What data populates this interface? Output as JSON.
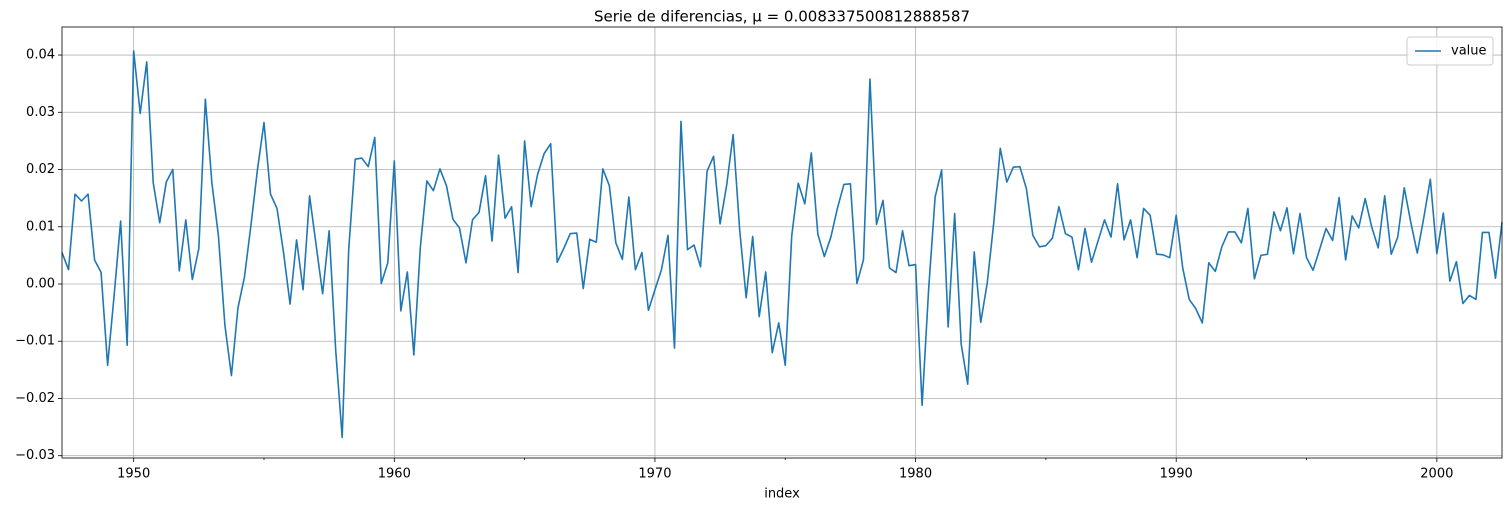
{
  "chart_data": {
    "type": "line",
    "title": "Serie de diferencias, μ = 0.008337500812888587",
    "xlabel": "index",
    "x": [
      1947.25,
      1947.5,
      1947.75,
      1948,
      1948.25,
      1948.5,
      1948.75,
      1949,
      1949.25,
      1949.5,
      1949.75,
      1950,
      1950.25,
      1950.5,
      1950.75,
      1951,
      1951.25,
      1951.5,
      1951.75,
      1952,
      1952.25,
      1952.5,
      1952.75,
      1953,
      1953.25,
      1953.5,
      1953.75,
      1954,
      1954.25,
      1954.5,
      1954.75,
      1955,
      1955.25,
      1955.5,
      1955.75,
      1956,
      1956.25,
      1956.5,
      1956.75,
      1957,
      1957.25,
      1957.5,
      1957.75,
      1958,
      1958.25,
      1958.5,
      1958.75,
      1959,
      1959.25,
      1959.5,
      1959.75,
      1960,
      1960.25,
      1960.5,
      1960.75,
      1961,
      1961.25,
      1961.5,
      1961.75,
      1962,
      1962.25,
      1962.5,
      1962.75,
      1963,
      1963.25,
      1963.5,
      1963.75,
      1964,
      1964.25,
      1964.5,
      1964.75,
      1965,
      1965.25,
      1965.5,
      1965.75,
      1966,
      1966.25,
      1966.5,
      1966.75,
      1967,
      1967.25,
      1967.5,
      1967.75,
      1968,
      1968.25,
      1968.5,
      1968.75,
      1969,
      1969.25,
      1969.5,
      1969.75,
      1970,
      1970.25,
      1970.5,
      1970.75,
      1971,
      1971.25,
      1971.5,
      1971.75,
      1972,
      1972.25,
      1972.5,
      1972.75,
      1973,
      1973.25,
      1973.5,
      1973.75,
      1974,
      1974.25,
      1974.5,
      1974.75,
      1975,
      1975.25,
      1975.5,
      1975.75,
      1976,
      1976.25,
      1976.5,
      1976.75,
      1977,
      1977.25,
      1977.5,
      1977.75,
      1978,
      1978.25,
      1978.5,
      1978.75,
      1979,
      1979.25,
      1979.5,
      1979.75,
      1980,
      1980.25,
      1980.5,
      1980.75,
      1981,
      1981.25,
      1981.5,
      1981.75,
      1982,
      1982.25,
      1982.5,
      1982.75,
      1983,
      1983.25,
      1983.5,
      1983.75,
      1984,
      1984.25,
      1984.5,
      1984.75,
      1985,
      1985.25,
      1985.5,
      1985.75,
      1986,
      1986.25,
      1986.5,
      1986.75,
      1987,
      1987.25,
      1987.5,
      1987.75,
      1988,
      1988.25,
      1988.5,
      1988.75,
      1989,
      1989.25,
      1989.5,
      1989.75,
      1990,
      1990.25,
      1990.5,
      1990.75,
      1991,
      1991.25,
      1991.5,
      1991.75,
      1992,
      1992.25,
      1992.5,
      1992.75,
      1993,
      1993.25,
      1993.5,
      1993.75,
      1994,
      1994.25,
      1994.5,
      1994.75,
      1995,
      1995.25,
      1995.5,
      1995.75,
      1996,
      1996.25,
      1996.5,
      1996.75,
      1997,
      1997.25,
      1997.5,
      1997.75,
      1998,
      1998.25,
      1998.5,
      1998.75,
      1999,
      1999.25,
      1999.5,
      1999.75,
      2000,
      2000.25,
      2000.5,
      2000.75,
      2001,
      2001.25,
      2001.5,
      2001.75,
      2002,
      2002.25,
      2002.5
    ],
    "series": [
      {
        "name": "value",
        "color": "#1f77b4",
        "values": [
          0.0055,
          0.0025,
          0.0157,
          0.0145,
          0.0157,
          0.0042,
          0.002,
          -0.0142,
          -0.002,
          0.011,
          -0.0107,
          0.0407,
          0.0298,
          0.0388,
          0.0177,
          0.0107,
          0.0178,
          0.02,
          0.0023,
          0.0112,
          0.0008,
          0.0062,
          0.0323,
          0.0177,
          0.0085,
          -0.0072,
          -0.016,
          -0.0042,
          0.0012,
          0.0103,
          0.02,
          0.0282,
          0.0157,
          0.0132,
          0.0055,
          -0.0035,
          0.0077,
          -0.001,
          0.0154,
          0.0068,
          -0.0017,
          0.0093,
          -0.0115,
          -0.0268,
          0.006,
          0.0218,
          0.022,
          0.0205,
          0.0256,
          0.0001,
          0.0037,
          0.0215,
          -0.0047,
          0.0021,
          -0.0124,
          0.0065,
          0.018,
          0.0163,
          0.0201,
          0.0172,
          0.0113,
          0.0098,
          0.0037,
          0.0112,
          0.0125,
          0.0189,
          0.0075,
          0.0225,
          0.0115,
          0.0135,
          0.002,
          0.025,
          0.0135,
          0.0192,
          0.0228,
          0.0245,
          0.0038,
          0.0062,
          0.0088,
          0.0089,
          -0.0008,
          0.0078,
          0.0073,
          0.0201,
          0.0172,
          0.0072,
          0.0043,
          0.0152,
          0.0025,
          0.0055,
          -0.0046,
          -0.001,
          0.0025,
          0.0085,
          -0.0112,
          0.0284,
          0.006,
          0.0068,
          0.003,
          0.0197,
          0.0223,
          0.0105,
          0.0172,
          0.0261,
          0.0095,
          -0.0024,
          0.0083,
          -0.0057,
          0.0021,
          -0.012,
          -0.0068,
          -0.0142,
          0.0085,
          0.0176,
          0.014,
          0.0229,
          0.0087,
          0.0048,
          0.0082,
          0.0132,
          0.0174,
          0.0175,
          0.0001,
          0.0042,
          0.0358,
          0.0104,
          0.0146,
          0.0028,
          0.002,
          0.0093,
          0.0032,
          0.0034,
          -0.0212,
          -0.001,
          0.0152,
          0.0199,
          -0.0075,
          0.0123,
          -0.0105,
          -0.0175,
          0.0056,
          -0.0067,
          0.0002,
          0.0107,
          0.0237,
          0.0178,
          0.0204,
          0.0205,
          0.0167,
          0.0085,
          0.0065,
          0.0067,
          0.008,
          0.0135,
          0.0088,
          0.0082,
          0.0025,
          0.0097,
          0.0038,
          0.0075,
          0.0112,
          0.0082,
          0.0175,
          0.0077,
          0.0112,
          0.0046,
          0.0132,
          0.012,
          0.0052,
          0.0051,
          0.0046,
          0.012,
          0.0028,
          -0.0027,
          -0.0043,
          -0.0068,
          0.0037,
          0.0022,
          0.0065,
          0.0091,
          0.0091,
          0.0072,
          0.0132,
          0.0009,
          0.005,
          0.0052,
          0.0126,
          0.0093,
          0.0133,
          0.0053,
          0.0123,
          0.0046,
          0.0024,
          0.006,
          0.0097,
          0.0076,
          0.0151,
          0.0042,
          0.0119,
          0.0098,
          0.0149,
          0.01,
          0.0063,
          0.0154,
          0.0052,
          0.0082,
          0.0168,
          0.0108,
          0.0054,
          0.0116,
          0.0183,
          0.0053,
          0.0124,
          0.0005,
          0.0039,
          -0.0034,
          -0.002,
          -0.0027,
          0.009,
          0.009,
          0.001,
          0.0108
        ]
      }
    ],
    "xlim": [
      1947.25,
      2002.5
    ],
    "xticks": [
      1950,
      1960,
      1970,
      1980,
      1990,
      2000
    ],
    "xminorticks": [
      1955,
      1965,
      1975,
      1985,
      1995
    ],
    "ylim": [
      -0.0304,
      0.0449
    ],
    "yticks": [
      {
        "value": -0.03,
        "label": "−0.03"
      },
      {
        "value": -0.02,
        "label": "−0.02"
      },
      {
        "value": -0.01,
        "label": "−0.01"
      },
      {
        "value": 0,
        "label": "0.00"
      },
      0.01,
      0.02,
      0.03,
      0.04
    ],
    "grid": true,
    "legend": "upper right"
  }
}
